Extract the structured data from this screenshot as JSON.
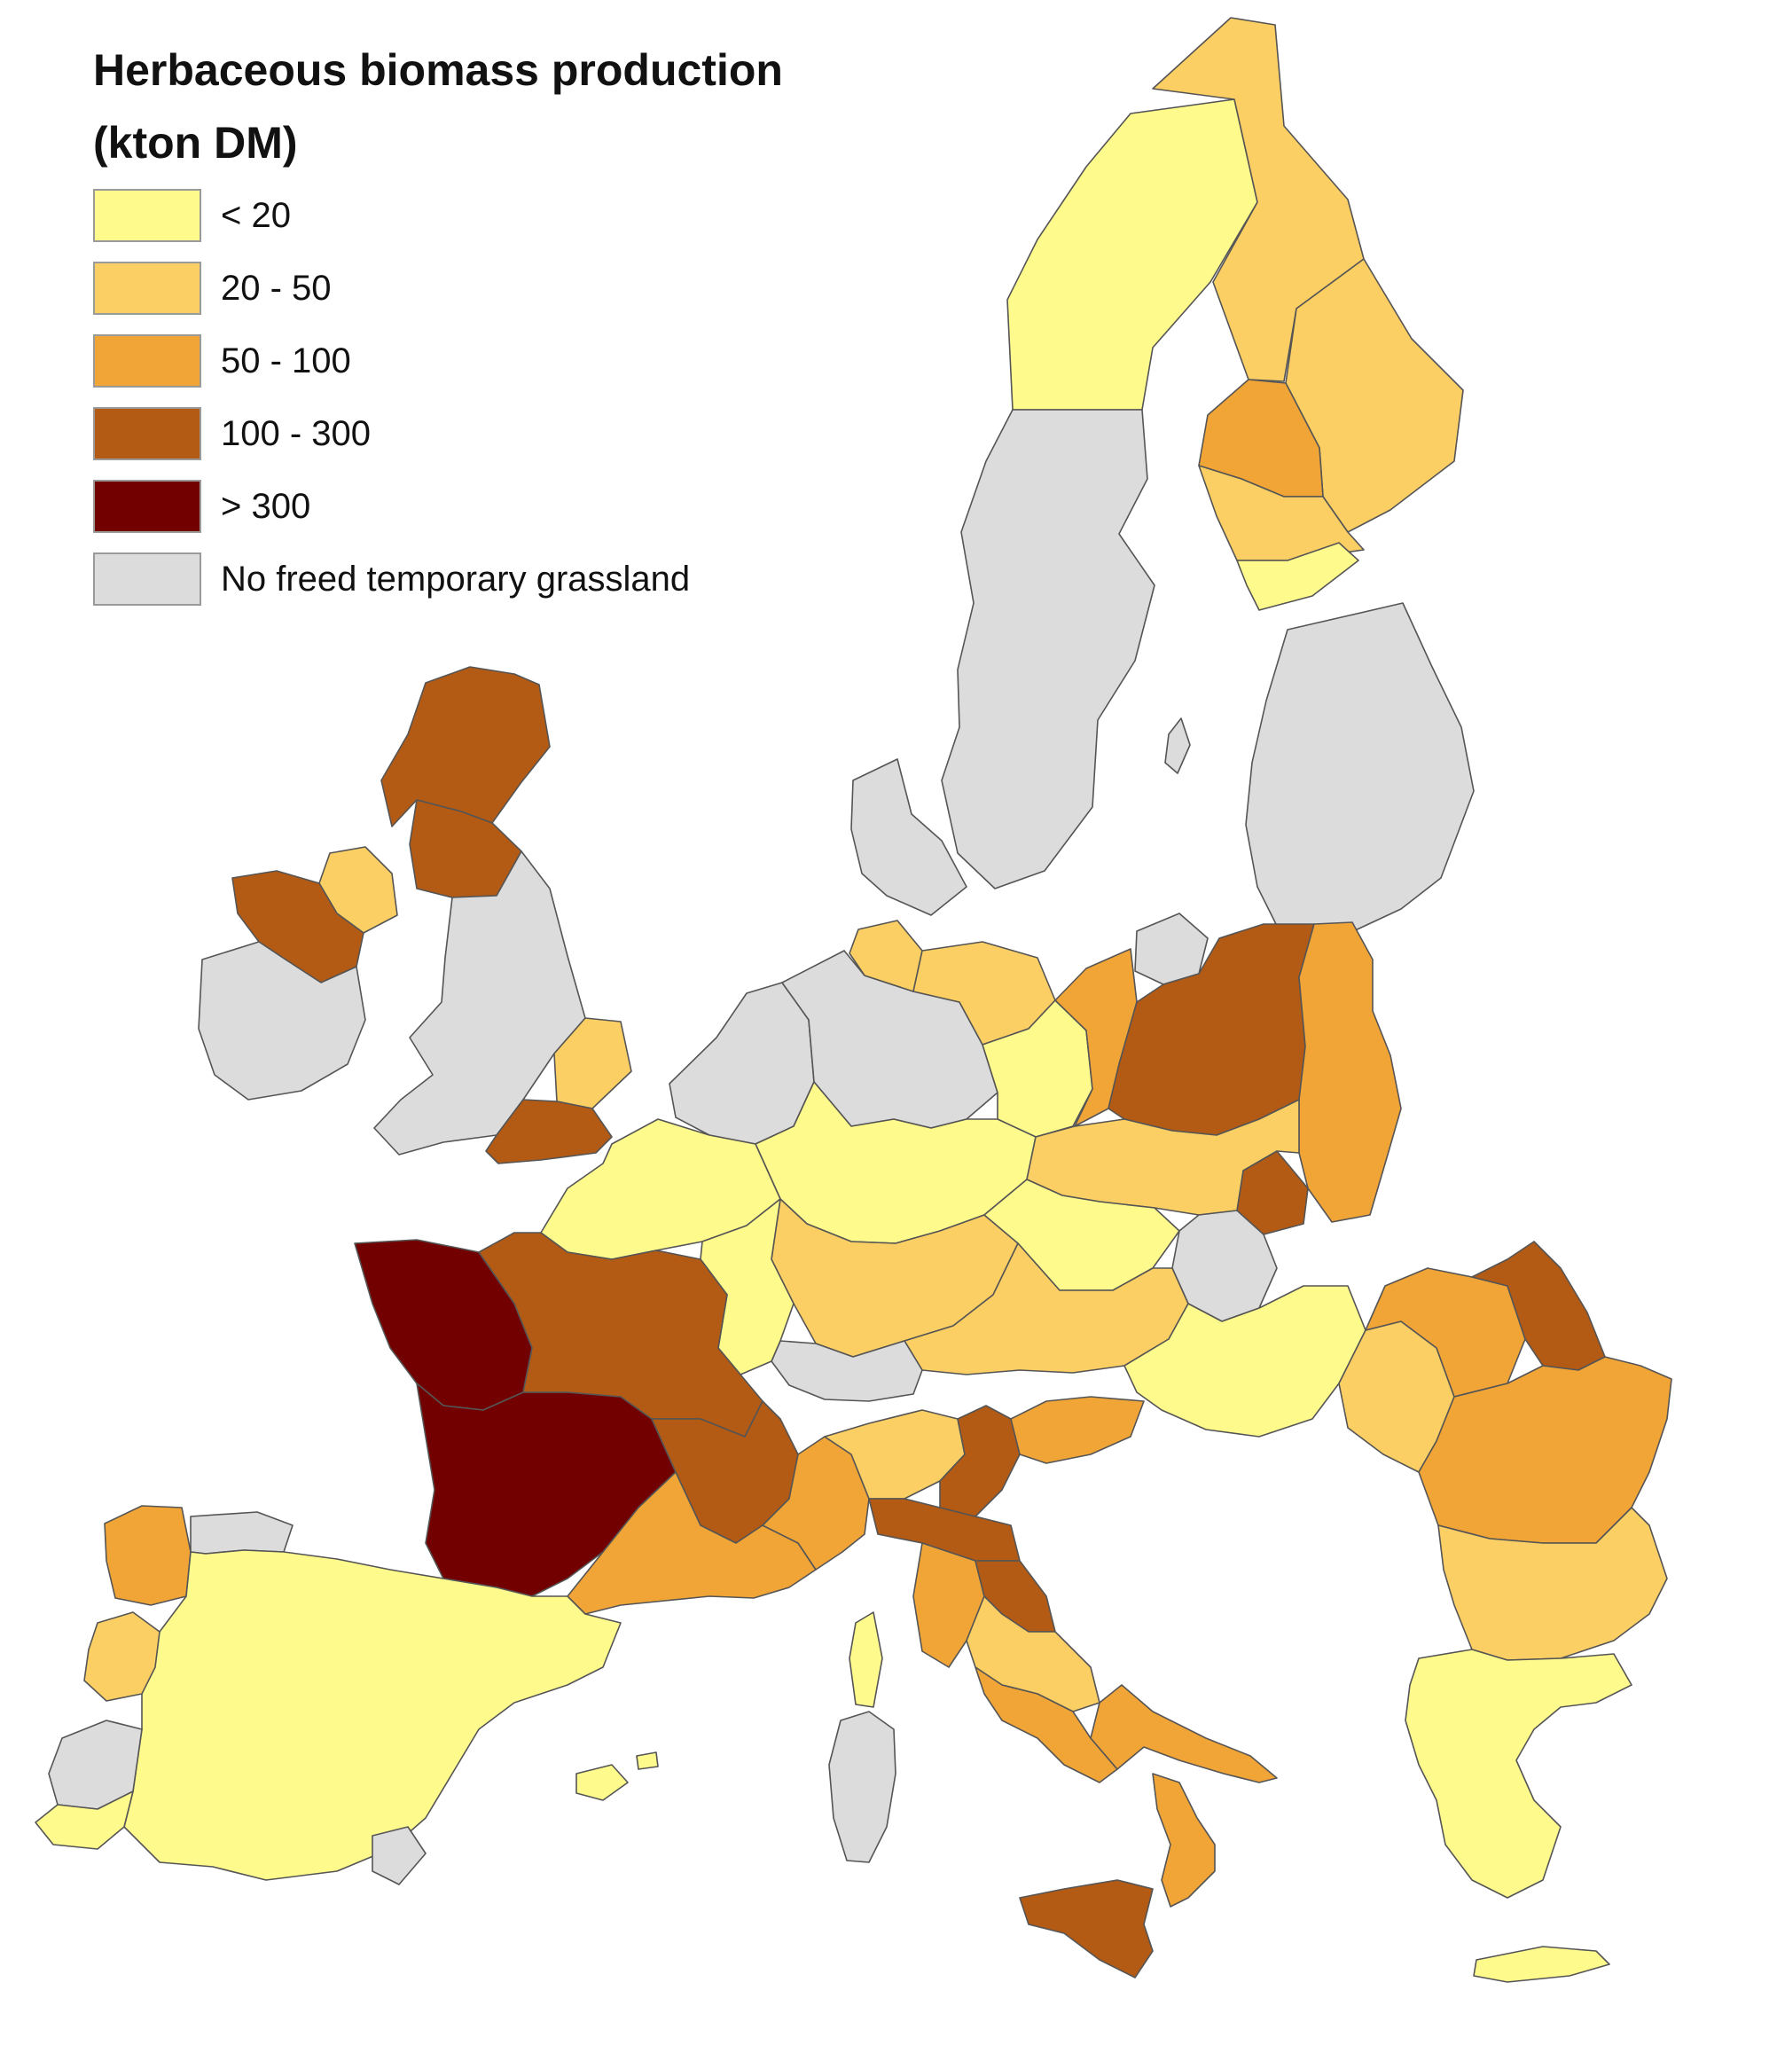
{
  "legend": {
    "title_line1": "Herbaceous biomass production",
    "title_line2": "(kton DM)",
    "classes": [
      {
        "key": "c1",
        "label": "< 20",
        "color": "#FFFA8C"
      },
      {
        "key": "c2",
        "label": "20 - 50",
        "color": "#FBCF63"
      },
      {
        "key": "c3",
        "label": "50 - 100",
        "color": "#F2A537"
      },
      {
        "key": "c4",
        "label": "100 - 300",
        "color": "#B35A14"
      },
      {
        "key": "c5",
        "label": "> 300",
        "color": "#720000"
      },
      {
        "key": "none",
        "label": "No freed temporary grassland",
        "color": "#DCDCDC"
      }
    ]
  },
  "regions": [
    {
      "name": "north-sweden",
      "cls": "c1"
    },
    {
      "name": "sweden-central-south",
      "cls": "none"
    },
    {
      "name": "gotland",
      "cls": "none"
    },
    {
      "name": "north-finland",
      "cls": "c2"
    },
    {
      "name": "east-finland",
      "cls": "c2"
    },
    {
      "name": "west-finland",
      "cls": "c3"
    },
    {
      "name": "south-finland",
      "cls": "c2"
    },
    {
      "name": "helsinki-region",
      "cls": "c1"
    },
    {
      "name": "baltics",
      "cls": "none"
    },
    {
      "name": "denmark",
      "cls": "none"
    },
    {
      "name": "north-scotland",
      "cls": "c4"
    },
    {
      "name": "south-scotland",
      "cls": "c4"
    },
    {
      "name": "northern-ireland",
      "cls": "c2"
    },
    {
      "name": "north-west-ireland",
      "cls": "c4"
    },
    {
      "name": "south-ireland",
      "cls": "none"
    },
    {
      "name": "england-wales",
      "cls": "none"
    },
    {
      "name": "east-england",
      "cls": "c2"
    },
    {
      "name": "south-england",
      "cls": "c4"
    },
    {
      "name": "benelux",
      "cls": "none"
    },
    {
      "name": "north-germany",
      "cls": "none"
    },
    {
      "name": "schleswig-holstein",
      "cls": "c2"
    },
    {
      "name": "mecklenburg",
      "cls": "c2"
    },
    {
      "name": "brandenburg",
      "cls": "c1"
    },
    {
      "name": "central-germany",
      "cls": "c1"
    },
    {
      "name": "south-germany",
      "cls": "c2"
    },
    {
      "name": "north-west-poland",
      "cls": "c3"
    },
    {
      "name": "north-east-poland",
      "cls": "none"
    },
    {
      "name": "central-poland",
      "cls": "c4"
    },
    {
      "name": "east-poland",
      "cls": "c3"
    },
    {
      "name": "south-east-poland",
      "cls": "c4"
    },
    {
      "name": "south-poland",
      "cls": "c2"
    },
    {
      "name": "czechia",
      "cls": "c1"
    },
    {
      "name": "slovakia",
      "cls": "none"
    },
    {
      "name": "austria",
      "cls": "c2"
    },
    {
      "name": "hungary",
      "cls": "c1"
    },
    {
      "name": "switzerland",
      "cls": "none"
    },
    {
      "name": "north-romania",
      "cls": "c3"
    },
    {
      "name": "north-east-romania",
      "cls": "c4"
    },
    {
      "name": "west-romania",
      "cls": "c2"
    },
    {
      "name": "south-romania",
      "cls": "c3"
    },
    {
      "name": "bulgaria",
      "cls": "c2"
    },
    {
      "name": "greece",
      "cls": "c1"
    },
    {
      "name": "crete",
      "cls": "c1"
    },
    {
      "name": "north-france",
      "cls": "c1"
    },
    {
      "name": "north-east-france",
      "cls": "c1"
    },
    {
      "name": "west-france",
      "cls": "c5"
    },
    {
      "name": "south-west-france",
      "cls": "c5"
    },
    {
      "name": "central-france",
      "cls": "c4"
    },
    {
      "name": "east-france",
      "cls": "c4"
    },
    {
      "name": "south-east-france",
      "cls": "c3"
    },
    {
      "name": "corsica",
      "cls": "c1"
    },
    {
      "name": "galicia",
      "cls": "c3"
    },
    {
      "name": "asturias-cantabria",
      "cls": "none"
    },
    {
      "name": "spain",
      "cls": "c1"
    },
    {
      "name": "north-portugal",
      "cls": "c2"
    },
    {
      "name": "central-portugal",
      "cls": "none"
    },
    {
      "name": "south-portugal",
      "cls": "c1"
    },
    {
      "name": "andalusia-west",
      "cls": "none"
    },
    {
      "name": "balearic-islands",
      "cls": "c1"
    },
    {
      "name": "north-west-italy",
      "cls": "c3"
    },
    {
      "name": "lombardy",
      "cls": "c2"
    },
    {
      "name": "veneto",
      "cls": "c4"
    },
    {
      "name": "friuli-slovenia",
      "cls": "c3"
    },
    {
      "name": "emilia-romagna",
      "cls": "c4"
    },
    {
      "name": "tuscany",
      "cls": "c3"
    },
    {
      "name": "marche",
      "cls": "c4"
    },
    {
      "name": "lazio-abruzzo",
      "cls": "c2"
    },
    {
      "name": "south-italy",
      "cls": "c3"
    },
    {
      "name": "puglia",
      "cls": "c3"
    },
    {
      "name": "calabria",
      "cls": "c3"
    },
    {
      "name": "sardinia",
      "cls": "none"
    },
    {
      "name": "sicily",
      "cls": "c4"
    }
  ]
}
